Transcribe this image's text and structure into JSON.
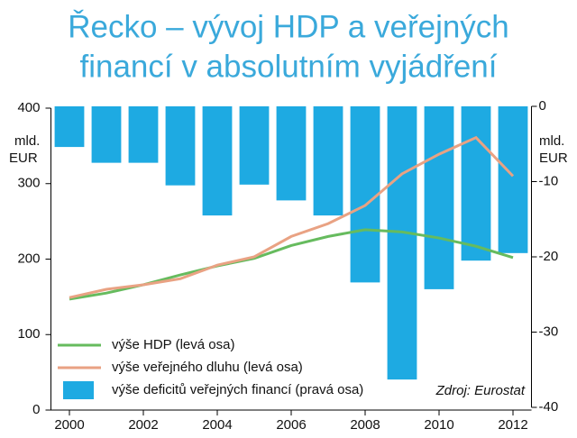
{
  "chart_data": {
    "type": "bar",
    "title": [
      "Řecko – vývoj HDP a veřejných",
      "financí v absolutním vyjádření"
    ],
    "y_label": [
      "mld.",
      "EUR"
    ],
    "y2_label": [
      "mld.",
      "EUR"
    ],
    "source": "Zdroj: Eurostat",
    "x": [
      2000,
      2001,
      2002,
      2003,
      2004,
      2005,
      2006,
      2007,
      2008,
      2009,
      2010,
      2011,
      2012
    ],
    "xlim": [
      1999.5,
      2012.5
    ],
    "xticks": [
      2000,
      2002,
      2004,
      2006,
      2008,
      2010,
      2012
    ],
    "ylim": [
      0,
      400
    ],
    "yticks": [
      0,
      100,
      200,
      300,
      400
    ],
    "y2lim": [
      -40,
      0
    ],
    "y2ticks": [
      0,
      -10,
      -20,
      -30,
      -40
    ],
    "series": [
      {
        "name": "výše HDP (levá osa)",
        "type": "line",
        "color": "#66bb5e",
        "values": [
          147,
          155,
          166,
          179,
          191,
          201,
          218,
          230,
          239,
          236,
          228,
          217,
          202
        ]
      },
      {
        "name": "výše veřejného dluhu (levá osa)",
        "type": "line",
        "color": "#e9a283",
        "values": [
          149,
          160,
          166,
          174,
          192,
          203,
          230,
          247,
          271,
          313,
          339,
          361,
          310
        ]
      },
      {
        "name": "výše deficitů veřejných financí (pravá osa)",
        "type": "bar",
        "axis": "y2",
        "color": "#1eaae2",
        "values": [
          -5.4,
          -7.5,
          -7.5,
          -10.5,
          -14.5,
          -10.4,
          -12.5,
          -14.5,
          -23.4,
          -36.3,
          -24.3,
          -20.5,
          -19.5
        ]
      }
    ]
  }
}
